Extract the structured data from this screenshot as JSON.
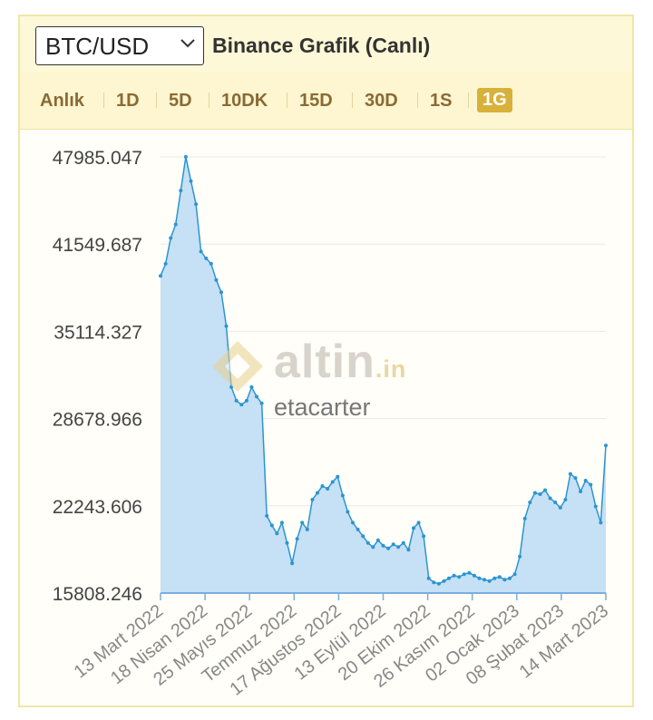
{
  "header": {
    "pair_selected": "BTC/USD",
    "chart_title": "Binance Grafik (Canlı)"
  },
  "tabs": [
    "Anlık",
    "1D",
    "5D",
    "10DK",
    "15D",
    "30D",
    "1S",
    "1G"
  ],
  "active_tab": "1G",
  "watermark": {
    "brand": "altin",
    "brand_suffix": ".in",
    "user": "etacarter"
  },
  "colors": {
    "line": "#2b95d0",
    "area": "#c6e0f5",
    "axis": "#7aaede",
    "active_tab": "#d8b13a",
    "tab_text": "#8a6a34"
  },
  "chart_data": {
    "type": "area",
    "y_ticks": [
      "47985.047",
      "41549.687",
      "35114.327",
      "28678.966",
      "22243.606",
      "15808.246"
    ],
    "ylim": [
      15808.246,
      47985.047
    ],
    "x_tick_labels": [
      "13 Mart 2022",
      "18 Nisan 2022",
      "25 Mayıs 2022",
      "Temmuz 2022",
      "17 Ağustos 2022",
      "13 Eylül 2022",
      "20 Ekim 2022",
      "26 Kasım 2022",
      "02 Ocak 2023",
      "08 Şubat 2023",
      "14 Mart 2023"
    ],
    "grid": true,
    "series": [
      {
        "values": [
          39200,
          40100,
          42000,
          43000,
          45500,
          47985,
          46200,
          44500,
          41000,
          40500,
          40100,
          38900,
          38000,
          35500,
          31000,
          30000,
          29700,
          30000,
          31000,
          30300,
          29800,
          21500,
          20800,
          20200,
          21000,
          19500,
          18000,
          19800,
          21000,
          20500,
          22700,
          23200,
          23700,
          23500,
          24000,
          24400,
          23000,
          21800,
          21000,
          20500,
          20000,
          19500,
          19200,
          19700,
          19300,
          19100,
          19400,
          19200,
          19500,
          19000,
          20600,
          21000,
          20000,
          16900,
          16600,
          16500,
          16700,
          16900,
          17100,
          17000,
          17200,
          17300,
          17100,
          16900,
          16800,
          16700,
          16900,
          17000,
          16800,
          16900,
          17200,
          18500,
          21300,
          22500,
          23200,
          23100,
          23400,
          22800,
          22500,
          22100,
          22700,
          24600,
          24300,
          23300,
          24100,
          23800,
          22200,
          21000,
          26700
        ]
      }
    ]
  }
}
